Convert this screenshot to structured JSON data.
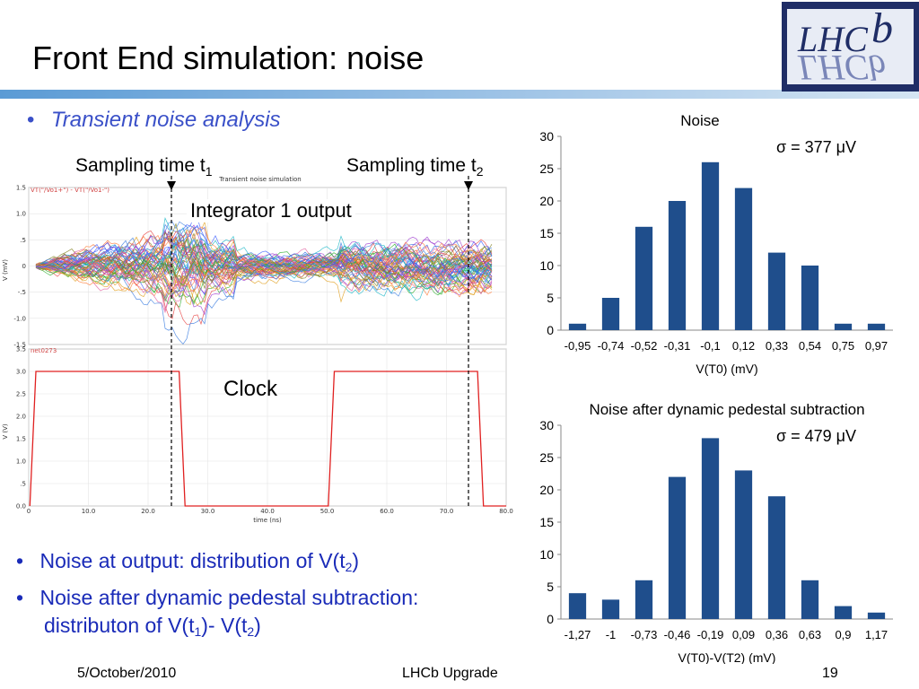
{
  "slide": {
    "title": "Front End simulation: noise",
    "logo_text": "LHCb",
    "bullet_top": "Transient noise analysis",
    "bullets_bottom": {
      "b1": {
        "prefix": "Noise at output: distribution of V(t",
        "sub": "2",
        "suffix": ")"
      },
      "b2_line1": "Noise after dynamic pedestal subtraction:",
      "b2_line2": {
        "prefix": "distributon of V(t",
        "sub1": "1",
        "mid": ")- V(t",
        "sub2": "2",
        "suffix": ")"
      }
    },
    "annotations": {
      "sampling1": {
        "text": "Sampling time t",
        "sub": "1"
      },
      "sampling2": {
        "text": "Sampling time t",
        "sub": "2"
      },
      "integrator": "Integrator 1 output",
      "clock": "Clock"
    },
    "footer": {
      "date": "5/October/2010",
      "center": "LHCb Upgrade",
      "page": "19"
    },
    "colors": {
      "bar": "#1f4e8c",
      "accent": "#3a50c8",
      "clock": "#e02020"
    }
  },
  "simulation": {
    "title": "Transient noise simulation",
    "top_legend": "VT(\"/Vo1+\") - VT(\"/Vo1-\")",
    "top_ylabel": "V (mV)",
    "top_yticks": [
      "1.5",
      "1.0",
      ".5",
      "0",
      "-.5",
      "-1.0",
      "-1.5"
    ],
    "bottom_legend": "net0273",
    "bottom_ylabel": "V (V)",
    "bottom_yticks": [
      "3.5",
      "3.0",
      "2.5",
      "2.0",
      "1.5",
      "1.0",
      ".5",
      "0.0"
    ],
    "xticks": [
      "0",
      "10.0",
      "20.0",
      "30.0",
      "40.0",
      "50.0",
      "60.0",
      "70.0",
      "80.0"
    ],
    "xlabel": "time (ns)"
  },
  "chart_data": [
    {
      "type": "bar",
      "title": "Noise",
      "annotation": "σ = 377 μV",
      "categories": [
        "-0,95",
        "-0,74",
        "-0,52",
        "-0,31",
        "-0,1",
        "0,12",
        "0,33",
        "0,54",
        "0,75",
        "0,97"
      ],
      "values": [
        1,
        5,
        16,
        20,
        26,
        22,
        12,
        10,
        1,
        1
      ],
      "yticks": [
        "0",
        "5",
        "10",
        "15",
        "20",
        "25",
        "30"
      ],
      "xlabel": "V(T0) (mV)",
      "ylabel": "",
      "ylim": [
        0,
        30
      ],
      "grid": false
    },
    {
      "type": "bar",
      "title": "Noise after dynamic pedestal subtraction",
      "annotation": "σ = 479 μV",
      "categories": [
        "-1,27",
        "-1",
        "-0,73",
        "-0,46",
        "-0,19",
        "0,09",
        "0,36",
        "0,63",
        "0,9",
        "1,17"
      ],
      "values": [
        4,
        3,
        6,
        22,
        28,
        23,
        19,
        6,
        2,
        1
      ],
      "yticks": [
        "0",
        "5",
        "10",
        "15",
        "20",
        "25",
        "30"
      ],
      "xlabel": "V(T0)-V(T2) (mV)",
      "ylabel": "",
      "ylim": [
        0,
        30
      ],
      "grid": false
    }
  ]
}
